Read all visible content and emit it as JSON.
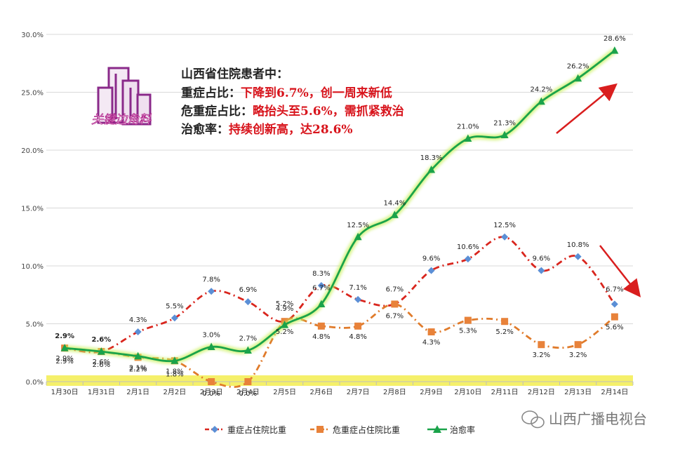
{
  "colors": {
    "severe": "#d9251d",
    "critical": "#e07b2b",
    "cure": "#1aa34a",
    "severe_marker": "#5b8fd6",
    "critical_marker": "#e8823a",
    "highlight": "#f5f06a",
    "arrow": "#d91e1e",
    "annotation_red": "#d8141c",
    "annotation_dark": "#222222"
  },
  "annotation": {
    "title": "山西省住院患者中：",
    "lines": [
      {
        "label": "重症占比：",
        "text": "下降到6.7%，创一周来新低"
      },
      {
        "label": "危重症占比：",
        "text": "略抬头至5.6%，需抓紧救治"
      },
      {
        "label": "治愈率：",
        "text": "持续创新高，达28.6%"
      }
    ]
  },
  "logo": {
    "text": "关键边角料"
  },
  "watermark": {
    "text": "山西广播电视台"
  },
  "chart_data": {
    "type": "line",
    "title": "",
    "xlabel": "",
    "ylabel": "",
    "ylim": [
      0,
      30
    ],
    "yticks": [
      "0.0%",
      "5.0%",
      "10.0%",
      "15.0%",
      "20.0%",
      "25.0%",
      "30.0%"
    ],
    "categories": [
      "1月30日",
      "1月31日",
      "2月1日",
      "2月2日",
      "2月3日",
      "2月4日",
      "2月5日",
      "2月6日",
      "2月7日",
      "2月8日",
      "2月9日",
      "2月10日",
      "2月11日",
      "2月12日",
      "2月13日",
      "2月14日"
    ],
    "legend_position": "bottom",
    "series": [
      {
        "name": "重症占住院比重",
        "values": [
          2.9,
          2.6,
          4.3,
          5.5,
          7.8,
          6.9,
          5.2,
          8.3,
          7.1,
          6.7,
          9.6,
          10.6,
          12.5,
          9.6,
          10.8,
          6.7
        ],
        "labels": [
          "2.9%",
          "2.6%",
          "4.3%",
          "5.5%",
          "7.8%",
          "6.9%",
          "5.2%",
          "8.3%",
          "7.1%",
          "6.7%",
          "9.6%",
          "10.6%",
          "12.5%",
          "9.6%",
          "10.8%",
          "6.7%"
        ]
      },
      {
        "name": "危重症占住院比重",
        "values": [
          2.9,
          2.6,
          2.1,
          1.8,
          0.0,
          0.0,
          5.2,
          4.8,
          4.8,
          6.7,
          4.3,
          5.3,
          5.2,
          3.2,
          3.2,
          5.6
        ],
        "labels": [
          "2.9%",
          "2.6%",
          "2.1%",
          "1.8%",
          "0.0%",
          "0.0%",
          "5.2%",
          "4.8%",
          "4.8%",
          "6.7%",
          "4.3%",
          "5.3%",
          "5.2%",
          "3.2%",
          "3.2%",
          "5.6%"
        ]
      },
      {
        "name": "治愈率",
        "values": [
          2.9,
          2.6,
          2.2,
          1.8,
          3.0,
          2.7,
          4.9,
          6.7,
          12.5,
          14.4,
          18.3,
          21.0,
          21.3,
          24.2,
          26.2,
          28.6
        ],
        "labels": [
          "2.9%",
          "2.6%",
          "2.2%",
          "1.8%",
          "3.0%",
          "2.7%",
          "4.9%",
          "6.7%",
          "12.5%",
          "14.4%",
          "18.3%",
          "21.0%",
          "21.3%",
          "24.2%",
          "26.2%",
          "28.6%"
        ]
      }
    ]
  }
}
